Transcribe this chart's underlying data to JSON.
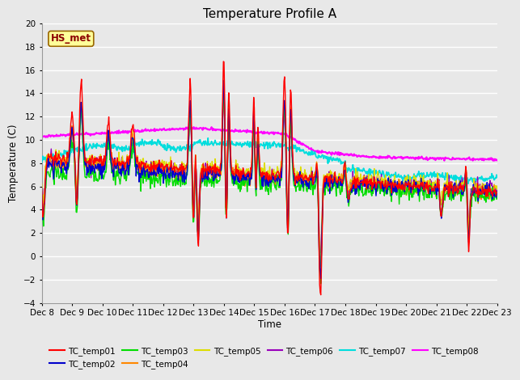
{
  "title": "Temperature Profile A",
  "xlabel": "Time",
  "ylabel": "Temperature (C)",
  "ylim": [
    -4,
    20
  ],
  "xlim": [
    0,
    15
  ],
  "x_tick_labels": [
    "Dec 8",
    "Dec 9",
    "Dec 10",
    "Dec 11",
    "Dec 12",
    "Dec 13",
    "Dec 14",
    "Dec 15",
    "Dec 16",
    "Dec 17",
    "Dec 18",
    "Dec 19",
    "Dec 20",
    "Dec 21",
    "Dec 22",
    "Dec 23"
  ],
  "series_colors": {
    "TC_temp01": "#FF0000",
    "TC_temp02": "#0000CC",
    "TC_temp03": "#00DD00",
    "TC_temp04": "#FF8800",
    "TC_temp05": "#DDDD00",
    "TC_temp06": "#9900BB",
    "TC_temp07": "#00DDDD",
    "TC_temp08": "#FF00FF"
  },
  "annotation_text": "HS_met",
  "annotation_color": "#8B0000",
  "annotation_bg": "#FFFF99",
  "background_color": "#E8E8E8",
  "grid_color": "#FFFFFF",
  "title_fontsize": 11,
  "legend_ncol_row1": 6,
  "legend_ncol_row2": 2
}
